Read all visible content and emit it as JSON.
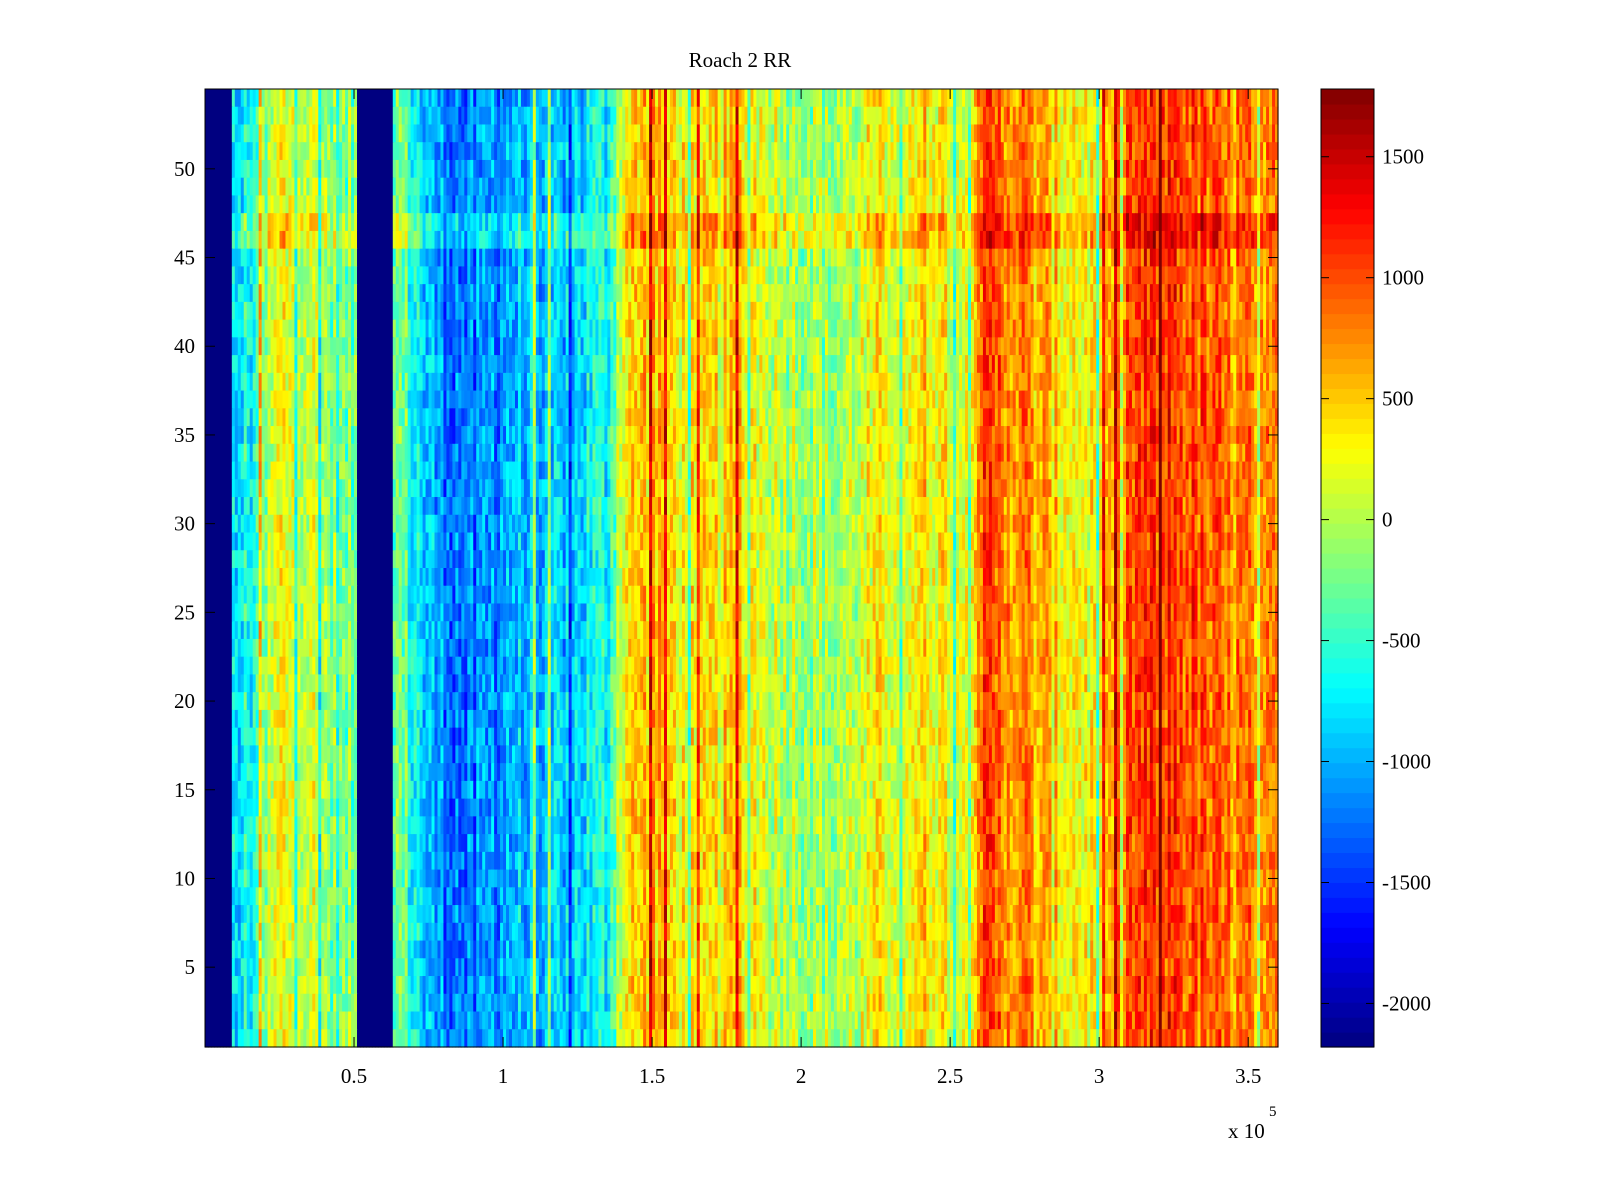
{
  "chart_data": {
    "type": "heatmap",
    "title": "Roach 2 RR",
    "xlabel": "",
    "ylabel": "",
    "x_multiplier_label": "x 10",
    "x_multiplier_exponent": "5",
    "xlim": [
      0,
      3.6
    ],
    "ylim": [
      0.5,
      54.5
    ],
    "x_ticks": [
      0.5,
      1,
      1.5,
      2,
      2.5,
      3,
      3.5
    ],
    "x_tick_labels": [
      "0.5",
      "1",
      "1.5",
      "2",
      "2.5",
      "3",
      "3.5"
    ],
    "y_ticks": [
      5,
      10,
      15,
      20,
      25,
      30,
      35,
      40,
      45,
      50
    ],
    "y_tick_labels": [
      "5",
      "10",
      "15",
      "20",
      "25",
      "30",
      "35",
      "40",
      "45",
      "50"
    ],
    "colormap": "jet",
    "clim": [
      -2180,
      1780
    ],
    "colorbar_ticks": [
      1500,
      1000,
      500,
      0,
      -500,
      -1000,
      -1500,
      -2000
    ],
    "colorbar_tick_labels": [
      "1500",
      "1000",
      "500",
      "0",
      "-500",
      "-1000",
      "-1500",
      "-2000"
    ],
    "rows": 54,
    "columns": 360,
    "column_profile": [
      {
        "x": 0.0,
        "value": -2180
      },
      {
        "x": 0.085,
        "value": -2180
      },
      {
        "x": 0.09,
        "value": -900
      },
      {
        "x": 0.17,
        "value": -500
      },
      {
        "x": 0.25,
        "value": 250
      },
      {
        "x": 0.35,
        "value": 150
      },
      {
        "x": 0.45,
        "value": -300
      },
      {
        "x": 0.51,
        "value": -200
      },
      {
        "x": 0.515,
        "value": -2180
      },
      {
        "x": 0.63,
        "value": -2180
      },
      {
        "x": 0.635,
        "value": -100
      },
      {
        "x": 0.75,
        "value": -1000
      },
      {
        "x": 0.9,
        "value": -1300
      },
      {
        "x": 1.0,
        "value": -1000
      },
      {
        "x": 1.2,
        "value": -900
      },
      {
        "x": 1.35,
        "value": -650
      },
      {
        "x": 1.4,
        "value": 300
      },
      {
        "x": 1.5,
        "value": 600
      },
      {
        "x": 1.65,
        "value": 200
      },
      {
        "x": 1.8,
        "value": 500
      },
      {
        "x": 1.9,
        "value": 100
      },
      {
        "x": 2.1,
        "value": -100
      },
      {
        "x": 2.3,
        "value": 300
      },
      {
        "x": 2.45,
        "value": 400
      },
      {
        "x": 2.55,
        "value": 150
      },
      {
        "x": 2.6,
        "value": 950
      },
      {
        "x": 2.75,
        "value": 750
      },
      {
        "x": 2.85,
        "value": 400
      },
      {
        "x": 3.0,
        "value": 250
      },
      {
        "x": 3.1,
        "value": 1000
      },
      {
        "x": 3.25,
        "value": 1100
      },
      {
        "x": 3.4,
        "value": 800
      },
      {
        "x": 3.6,
        "value": 650
      }
    ],
    "low_value_bands": [
      [
        0.0,
        0.085
      ],
      [
        0.515,
        0.63
      ]
    ],
    "high_rows": [
      46,
      47
    ]
  }
}
